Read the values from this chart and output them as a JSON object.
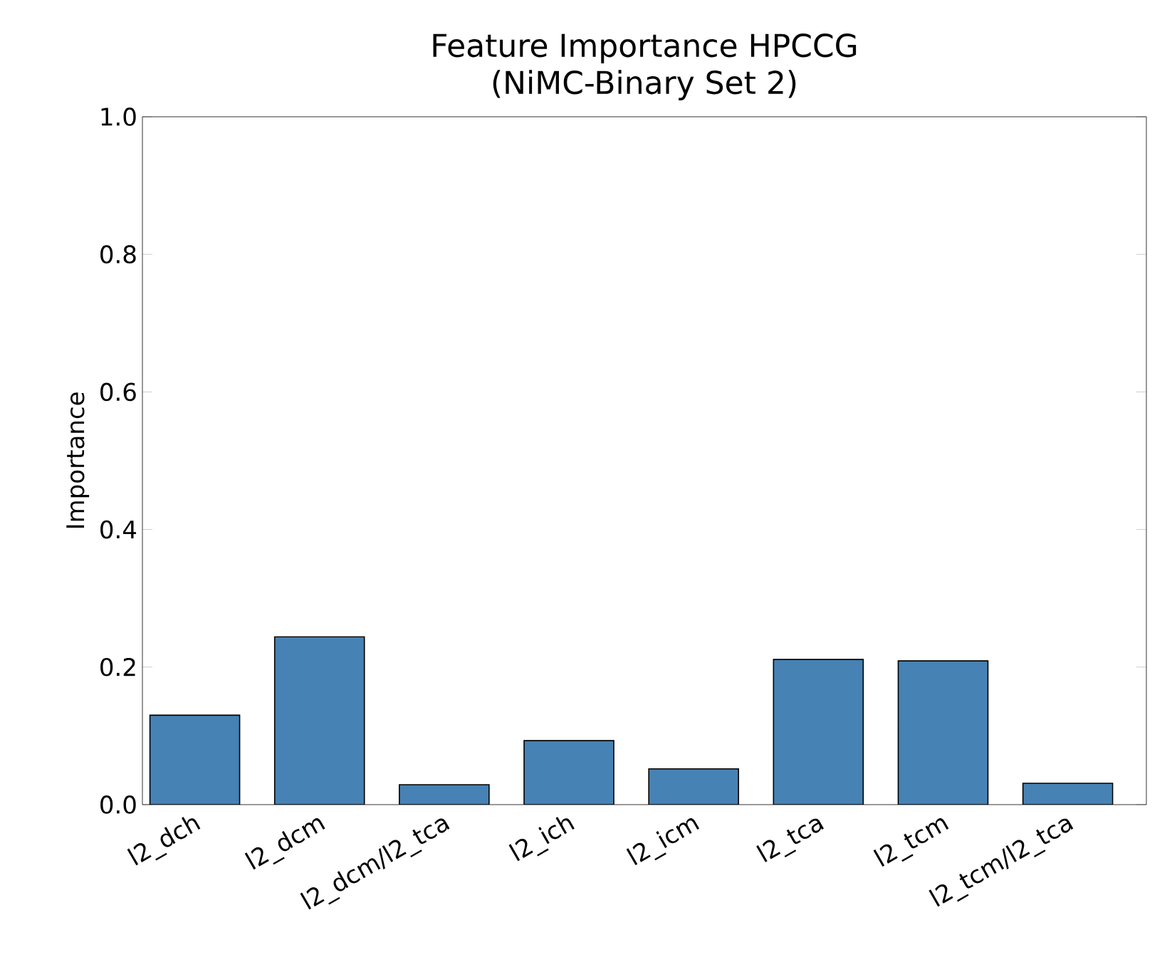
{
  "chart_data": {
    "type": "bar",
    "title": "Feature Importance HPCCG\n(NiMC-Binary Set 2)",
    "ylabel": "Importance",
    "categories": [
      "l2_dch",
      "l2_dcm",
      "l2_dcm/l2_tca",
      "l2_ich",
      "l2_icm",
      "l2_tca",
      "l2_tcm",
      "l2_tcm/l2_tca"
    ],
    "values": [
      0.13,
      0.244,
      0.029,
      0.093,
      0.052,
      0.211,
      0.209,
      0.031
    ],
    "color": "#4682b4",
    "ylim": [
      0,
      1
    ],
    "yticks": [
      {
        "value": 0,
        "label": "0.0"
      },
      {
        "value": 0.2,
        "label": "0.2"
      },
      {
        "value": 0.4,
        "label": "0.4"
      },
      {
        "value": 0.6,
        "label": "0.6"
      },
      {
        "value": 0.8,
        "label": "0.8"
      },
      {
        "value": 1,
        "label": "1.0"
      }
    ],
    "grid": false
  }
}
